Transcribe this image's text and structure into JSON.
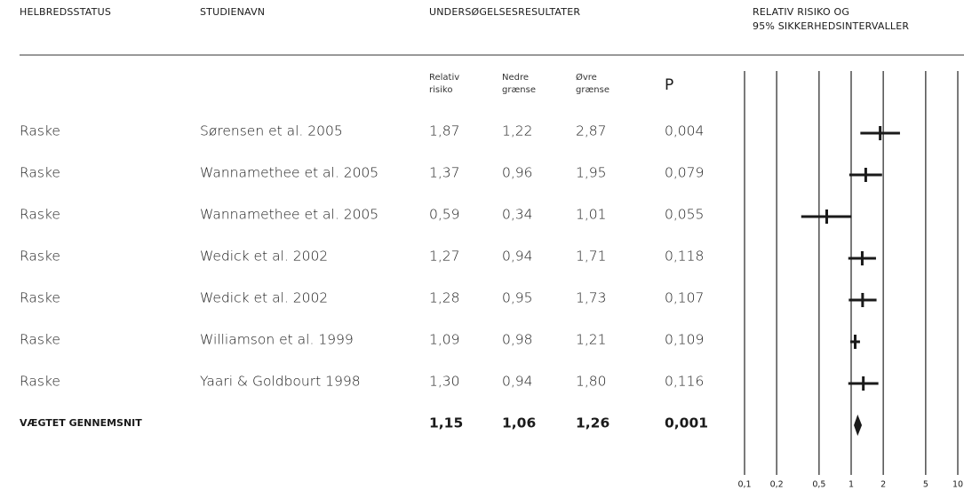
{
  "headers": {
    "status": "HELBREDSSTATUS",
    "study": "STUDIENAVN",
    "results": "UNDERSØGELSESRESULTATER",
    "plot": [
      "RELATIV RISIKO OG",
      "95% SIKKERHEDSINTERVALLER"
    ]
  },
  "subheaders": [
    [
      "Relativ",
      "risiko"
    ],
    [
      "Nedre",
      "grænse"
    ],
    [
      "Øvre",
      "grænse"
    ],
    [
      "P"
    ]
  ],
  "chart_data": {
    "type": "forest",
    "status": [
      "Raske",
      "Raske",
      "Raske",
      "Raske",
      "Raske",
      "Raske",
      "Raske"
    ],
    "categories": [
      "Sørensen et al. 2005",
      "Wannamethee et al. 2005",
      "Wannamethee et al. 2005",
      "Wedick et al. 2002",
      "Wedick et al. 2002",
      "Williamson et al. 1999",
      "Yaari & Goldbourt 1998"
    ],
    "values": [
      1.87,
      1.37,
      0.59,
      1.27,
      1.28,
      1.09,
      1.3
    ],
    "value_labels": [
      "1,87",
      "1,37",
      "0,59",
      "1,27",
      "1,28",
      "1,09",
      "1,30"
    ],
    "lower": [
      1.22,
      0.96,
      0.34,
      0.94,
      0.95,
      0.98,
      0.94
    ],
    "lower_labels": [
      "1,22",
      "0,96",
      "0,34",
      "0,94",
      "0,95",
      "0,98",
      "0,94"
    ],
    "upper": [
      2.87,
      1.95,
      1.01,
      1.71,
      1.73,
      1.21,
      1.8
    ],
    "upper_labels": [
      "2,87",
      "1,95",
      "1,01",
      "1,71",
      "1,73",
      "1,21",
      "1,80"
    ],
    "p_labels": [
      "0,004",
      "0,079",
      "0,055",
      "0,118",
      "0,107",
      "0,109",
      "0,116"
    ],
    "summary": {
      "label": "VÆGTET GENNEMSNIT",
      "value": 1.15,
      "value_label": "1,15",
      "lower": 1.06,
      "lower_label": "1,06",
      "upper": 1.26,
      "upper_label": "1,26",
      "p_label": "0,001"
    },
    "log_scale": true,
    "xlim": [
      0.1,
      10
    ],
    "xticks": [
      {
        "value": 0.1,
        "label": "0,1"
      },
      {
        "value": 0.2,
        "label": "0,2"
      },
      {
        "value": 0.5,
        "label": "0,5"
      },
      1,
      2,
      5,
      10
    ],
    "color": "#1a1a1a"
  }
}
